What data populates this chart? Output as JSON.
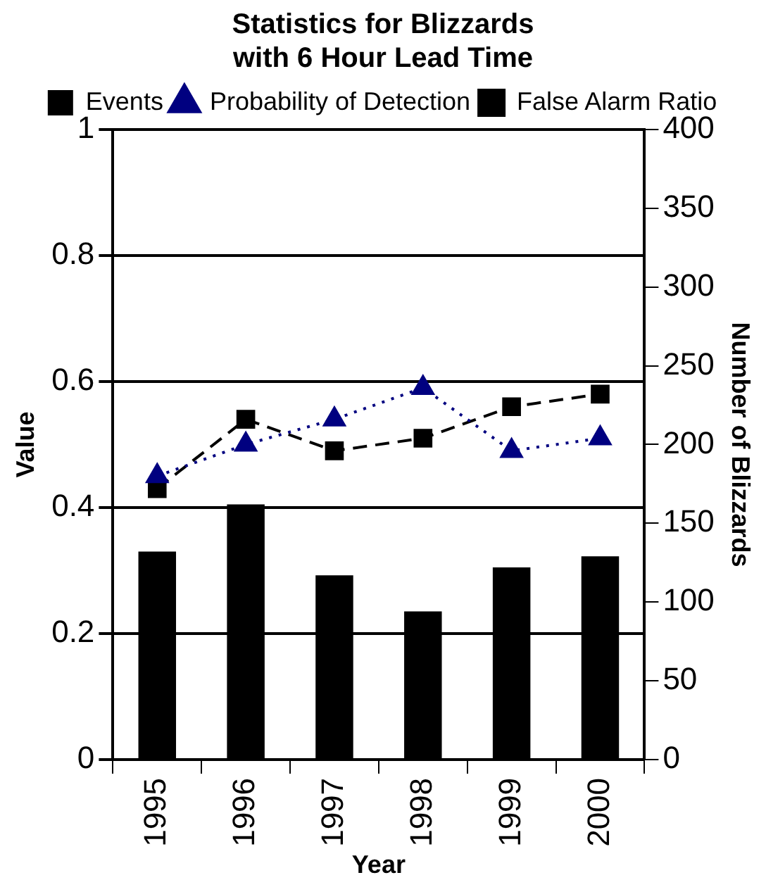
{
  "chart_data": {
    "type": "bar",
    "title": "Statistics for Blizzards\nwith 6 Hour Lead Time",
    "xlabel": "Year",
    "ylabel": "Value",
    "y2label": "Number of Blizzards",
    "categories": [
      "1995",
      "1996",
      "1997",
      "1998",
      "1999",
      "2000"
    ],
    "series": [
      {
        "name": "Events",
        "axis": "y2",
        "color": "#000000",
        "values": [
          132,
          162,
          117,
          94,
          122,
          129
        ]
      },
      {
        "name": "Probability of Detection",
        "type": "line",
        "color": "#000080",
        "marker": "triangle",
        "line_style": "dotted",
        "values": [
          0.45,
          0.5,
          0.54,
          0.59,
          0.49,
          0.51
        ]
      },
      {
        "name": "False Alarm Ratio",
        "type": "line",
        "color": "#000000",
        "marker": "square",
        "line_style": "dashed",
        "values": [
          0.43,
          0.54,
          0.49,
          0.51,
          0.56,
          0.58
        ]
      }
    ],
    "ylim": [
      0,
      1
    ],
    "yticks": [
      0,
      0.2,
      0.4,
      0.6,
      0.8,
      1
    ],
    "y2lim": [
      0,
      400
    ],
    "y2ticks": [
      0,
      50,
      100,
      150,
      200,
      250,
      300,
      350,
      400
    ],
    "grid": "y",
    "legend": "top"
  }
}
